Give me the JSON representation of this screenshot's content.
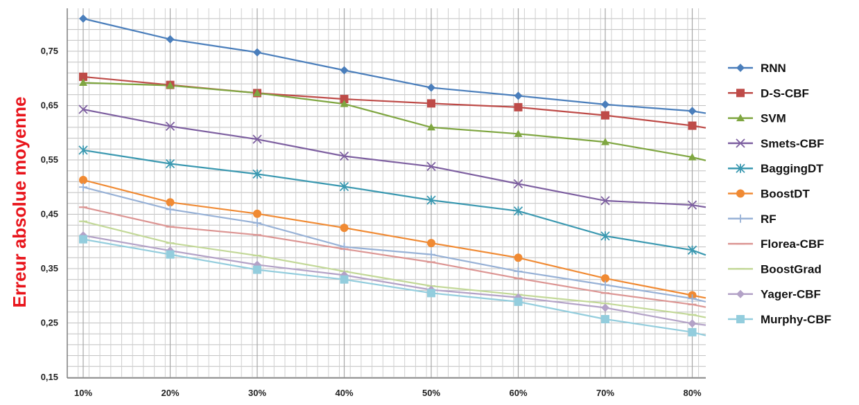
{
  "chart_data": {
    "type": "line",
    "title": "",
    "xlabel": "",
    "ylabel": "Erreur absolue moyenne",
    "categories": [
      "10%",
      "20%",
      "30%",
      "40%",
      "50%",
      "60%",
      "70%",
      "80%"
    ],
    "ylim": [
      0.15,
      0.82
    ],
    "yticks": [
      "0,15",
      "0,25",
      "0,35",
      "0,45",
      "0,55",
      "0,65",
      "0,75"
    ],
    "ytick_values": [
      0.15,
      0.25,
      0.35,
      0.45,
      0.55,
      0.65,
      0.75
    ],
    "grid": true,
    "legend_position": "right",
    "series": [
      {
        "name": "RNN",
        "color": "#4a7ebb",
        "marker": "diamond",
        "values": [
          0.81,
          0.772,
          0.748,
          0.715,
          0.683,
          0.668,
          0.652,
          0.64
        ],
        "tail": 0.636
      },
      {
        "name": "D-S-CBF",
        "color": "#be4b48",
        "marker": "square",
        "values": [
          0.703,
          0.688,
          0.673,
          0.662,
          0.654,
          0.647,
          0.632,
          0.613
        ],
        "tail": 0.609
      },
      {
        "name": "SVM",
        "color": "#7fa641",
        "marker": "triangle",
        "values": [
          0.692,
          0.687,
          0.673,
          0.653,
          0.61,
          0.598,
          0.583,
          0.555
        ],
        "tail": 0.549
      },
      {
        "name": "Smets-CBF",
        "color": "#7d5fa0",
        "marker": "x",
        "values": [
          0.643,
          0.612,
          0.588,
          0.557,
          0.538,
          0.506,
          0.475,
          0.467
        ],
        "tail": 0.463
      },
      {
        "name": "BaggingDT",
        "color": "#3a98b0",
        "marker": "star",
        "values": [
          0.568,
          0.543,
          0.524,
          0.501,
          0.476,
          0.456,
          0.41,
          0.384
        ],
        "tail": 0.375
      },
      {
        "name": "BoostDT",
        "color": "#f08a33",
        "marker": "circle",
        "values": [
          0.513,
          0.472,
          0.451,
          0.425,
          0.397,
          0.37,
          0.332,
          0.301
        ],
        "tail": 0.296
      },
      {
        "name": "RF",
        "color": "#97b1d6",
        "marker": "plus",
        "values": [
          0.5,
          0.459,
          0.434,
          0.39,
          0.376,
          0.345,
          0.32,
          0.295
        ],
        "tail": 0.289
      },
      {
        "name": "Florea-CBF",
        "color": "#dc9593",
        "marker": "dash",
        "values": [
          0.463,
          0.427,
          0.412,
          0.386,
          0.362,
          0.332,
          0.305,
          0.284
        ],
        "tail": 0.279
      },
      {
        "name": "BoostGrad",
        "color": "#c2d897",
        "marker": "dash",
        "values": [
          0.437,
          0.397,
          0.374,
          0.345,
          0.318,
          0.302,
          0.286,
          0.265
        ],
        "tail": 0.26
      },
      {
        "name": "Yager-CBF",
        "color": "#b3a2c7",
        "marker": "diamond",
        "values": [
          0.411,
          0.383,
          0.357,
          0.338,
          0.311,
          0.297,
          0.278,
          0.249
        ],
        "tail": 0.246
      },
      {
        "name": "Murphy-CBF",
        "color": "#93cddd",
        "marker": "square",
        "values": [
          0.404,
          0.376,
          0.348,
          0.33,
          0.305,
          0.289,
          0.257,
          0.233
        ],
        "tail": 0.227
      }
    ]
  }
}
